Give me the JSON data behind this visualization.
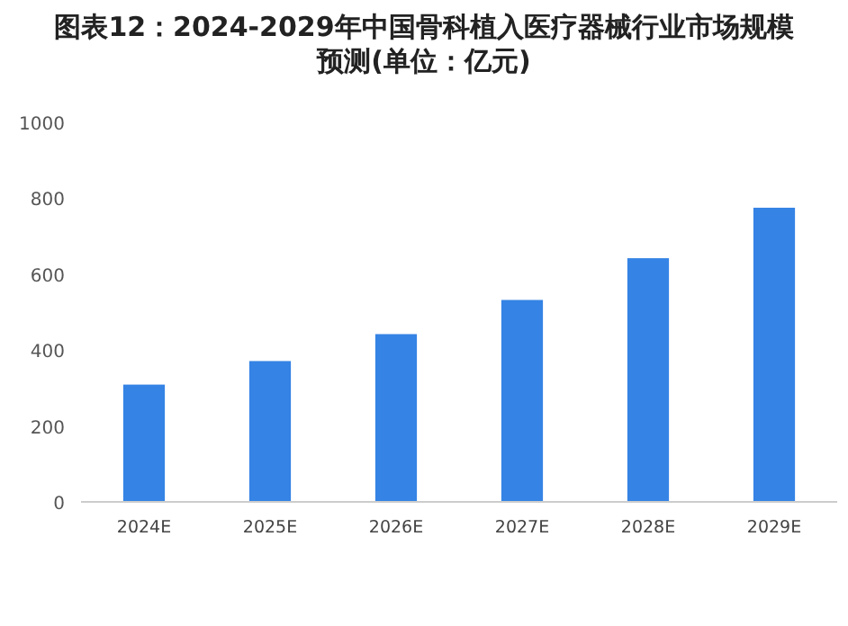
{
  "chart_data": {
    "type": "bar",
    "title": "图表12：2024-2029年中国骨科植入医疗器械行业市场规模预测(单位：亿元)",
    "categories": [
      "2024E",
      "2025E",
      "2026E",
      "2027E",
      "2028E",
      "2029E"
    ],
    "values": [
      309,
      371,
      442,
      532,
      642,
      775
    ],
    "color": "#3583e5",
    "ylim": [
      0,
      1000
    ],
    "yticks": [
      0,
      200,
      400,
      600,
      800,
      1000
    ]
  }
}
